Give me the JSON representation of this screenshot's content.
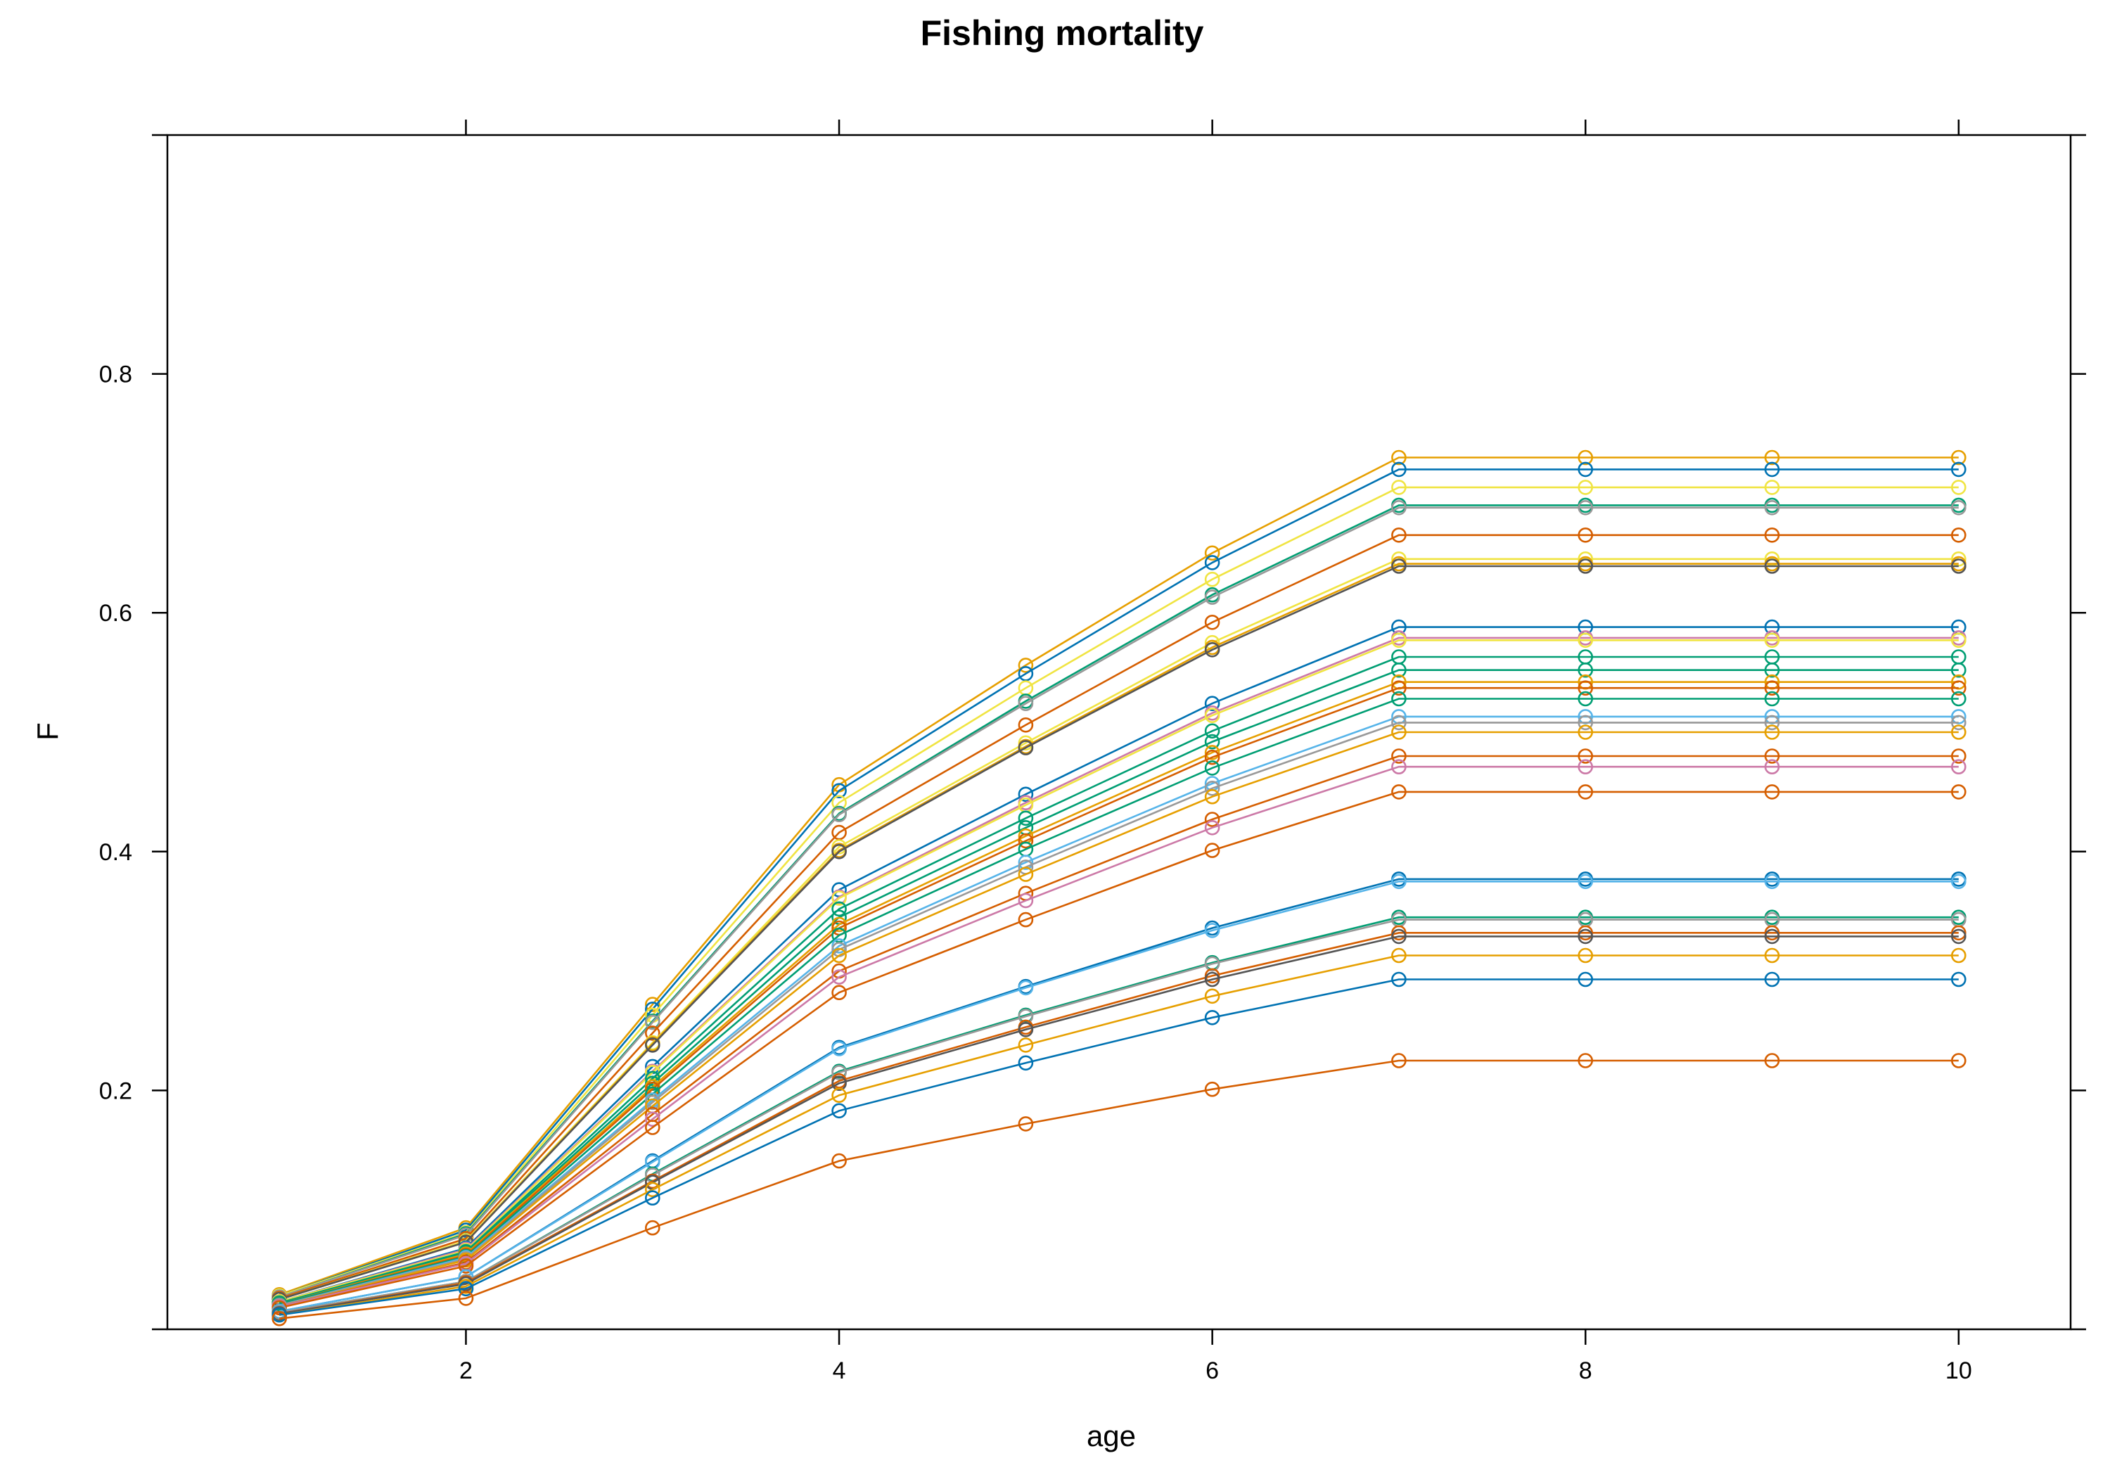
{
  "chart_data": {
    "type": "line",
    "title": "Fishing mortality",
    "xlabel": "age",
    "ylabel": "F",
    "xlim": [
      0.4,
      10.6
    ],
    "ylim": [
      0.0,
      1.0
    ],
    "x_ticks": [
      2,
      4,
      6,
      8,
      10
    ],
    "y_ticks": [
      0.2,
      0.4,
      0.6,
      0.8
    ],
    "x_tick_labels": [
      "2",
      "4",
      "6",
      "8",
      "10"
    ],
    "y_tick_labels": [
      "0.2",
      "0.4",
      "0.6",
      "0.8"
    ],
    "markers": "open-circle",
    "grid": false,
    "legend": "none",
    "x": [
      1,
      2,
      3,
      4,
      5,
      6,
      7,
      8,
      9,
      10
    ],
    "series": [
      {
        "color": "#E69F00",
        "values": [
          0.029,
          0.085,
          0.272,
          0.456,
          0.556,
          0.65,
          0.73,
          0.73,
          0.73,
          0.73
        ]
      },
      {
        "color": "#0072B2",
        "values": [
          0.028,
          0.083,
          0.268,
          0.451,
          0.549,
          0.642,
          0.72,
          0.72,
          0.72,
          0.72
        ]
      },
      {
        "color": "#F0E442",
        "values": [
          0.028,
          0.081,
          0.263,
          0.441,
          0.537,
          0.628,
          0.705,
          0.705,
          0.705,
          0.705
        ]
      },
      {
        "color": "#009E73",
        "values": [
          0.027,
          0.08,
          0.258,
          0.432,
          0.526,
          0.615,
          0.69,
          0.69,
          0.69,
          0.69
        ]
      },
      {
        "color": "#999999",
        "values": [
          0.027,
          0.079,
          0.257,
          0.431,
          0.524,
          0.613,
          0.688,
          0.688,
          0.688,
          0.688
        ]
      },
      {
        "color": "#D55E00",
        "values": [
          0.026,
          0.076,
          0.248,
          0.416,
          0.506,
          0.592,
          0.665,
          0.665,
          0.665,
          0.665
        ]
      },
      {
        "color": "#F0E442",
        "values": [
          0.025,
          0.074,
          0.24,
          0.404,
          0.491,
          0.575,
          0.645,
          0.645,
          0.645,
          0.645
        ]
      },
      {
        "color": "#E69F00",
        "values": [
          0.025,
          0.073,
          0.239,
          0.401,
          0.488,
          0.571,
          0.641,
          0.641,
          0.641,
          0.641
        ]
      },
      {
        "color": "#555555",
        "values": [
          0.025,
          0.073,
          0.238,
          0.4,
          0.487,
          0.569,
          0.639,
          0.639,
          0.639,
          0.639
        ]
      },
      {
        "color": "#0072B2",
        "values": [
          0.023,
          0.068,
          0.22,
          0.368,
          0.448,
          0.524,
          0.588,
          0.588,
          0.588,
          0.588
        ]
      },
      {
        "color": "#CC79A7",
        "values": [
          0.023,
          0.067,
          0.216,
          0.362,
          0.441,
          0.516,
          0.579,
          0.579,
          0.579,
          0.579
        ]
      },
      {
        "color": "#F0E442",
        "values": [
          0.023,
          0.066,
          0.215,
          0.361,
          0.439,
          0.514,
          0.577,
          0.577,
          0.577,
          0.577
        ]
      },
      {
        "color": "#009E73",
        "values": [
          0.022,
          0.065,
          0.21,
          0.352,
          0.428,
          0.501,
          0.563,
          0.563,
          0.563,
          0.563
        ]
      },
      {
        "color": "#009E73",
        "values": [
          0.022,
          0.064,
          0.206,
          0.345,
          0.42,
          0.492,
          0.552,
          0.552,
          0.552,
          0.552
        ]
      },
      {
        "color": "#E69F00",
        "values": [
          0.021,
          0.063,
          0.203,
          0.339,
          0.413,
          0.483,
          0.542,
          0.542,
          0.542,
          0.542
        ]
      },
      {
        "color": "#D55E00",
        "values": [
          0.021,
          0.062,
          0.201,
          0.336,
          0.409,
          0.479,
          0.537,
          0.537,
          0.537,
          0.537
        ]
      },
      {
        "color": "#009E73",
        "values": [
          0.021,
          0.061,
          0.197,
          0.33,
          0.402,
          0.47,
          0.528,
          0.528,
          0.528,
          0.528
        ]
      },
      {
        "color": "#56B4E9",
        "values": [
          0.02,
          0.06,
          0.192,
          0.321,
          0.391,
          0.457,
          0.513,
          0.513,
          0.513,
          0.513
        ]
      },
      {
        "color": "#999999",
        "values": [
          0.02,
          0.059,
          0.19,
          0.318,
          0.387,
          0.453,
          0.508,
          0.508,
          0.508,
          0.508
        ]
      },
      {
        "color": "#E69F00",
        "values": [
          0.019,
          0.058,
          0.187,
          0.313,
          0.381,
          0.446,
          0.5,
          0.5,
          0.5,
          0.5
        ]
      },
      {
        "color": "#D55E00",
        "values": [
          0.019,
          0.056,
          0.18,
          0.3,
          0.365,
          0.427,
          0.48,
          0.48,
          0.48,
          0.48
        ]
      },
      {
        "color": "#CC79A7",
        "values": [
          0.019,
          0.055,
          0.176,
          0.295,
          0.359,
          0.42,
          0.471,
          0.471,
          0.471,
          0.471
        ]
      },
      {
        "color": "#D55E00",
        "values": [
          0.018,
          0.053,
          0.169,
          0.282,
          0.343,
          0.401,
          0.45,
          0.45,
          0.45,
          0.45
        ]
      },
      {
        "color": "#0072B2",
        "values": [
          0.015,
          0.044,
          0.141,
          0.236,
          0.287,
          0.336,
          0.377,
          0.377,
          0.377,
          0.377
        ]
      },
      {
        "color": "#56B4E9",
        "values": [
          0.015,
          0.044,
          0.14,
          0.235,
          0.286,
          0.334,
          0.375,
          0.375,
          0.375,
          0.375
        ]
      },
      {
        "color": "#009E73",
        "values": [
          0.014,
          0.04,
          0.13,
          0.216,
          0.263,
          0.307,
          0.345,
          0.345,
          0.345,
          0.345
        ]
      },
      {
        "color": "#999999",
        "values": [
          0.014,
          0.04,
          0.129,
          0.215,
          0.262,
          0.306,
          0.343,
          0.343,
          0.343,
          0.343
        ]
      },
      {
        "color": "#D55E00",
        "values": [
          0.013,
          0.039,
          0.124,
          0.208,
          0.253,
          0.296,
          0.332,
          0.332,
          0.332,
          0.332
        ]
      },
      {
        "color": "#555555",
        "values": [
          0.013,
          0.038,
          0.123,
          0.206,
          0.251,
          0.293,
          0.329,
          0.329,
          0.329,
          0.329
        ]
      },
      {
        "color": "#E69F00",
        "values": [
          0.012,
          0.036,
          0.117,
          0.196,
          0.238,
          0.279,
          0.313,
          0.313,
          0.313,
          0.313
        ]
      },
      {
        "color": "#0072B2",
        "values": [
          0.012,
          0.034,
          0.11,
          0.183,
          0.223,
          0.261,
          0.293,
          0.293,
          0.293,
          0.293
        ]
      },
      {
        "color": "#D55E00",
        "values": [
          0.009,
          0.026,
          0.085,
          0.141,
          0.172,
          0.201,
          0.225,
          0.225,
          0.225,
          0.225
        ]
      }
    ]
  }
}
